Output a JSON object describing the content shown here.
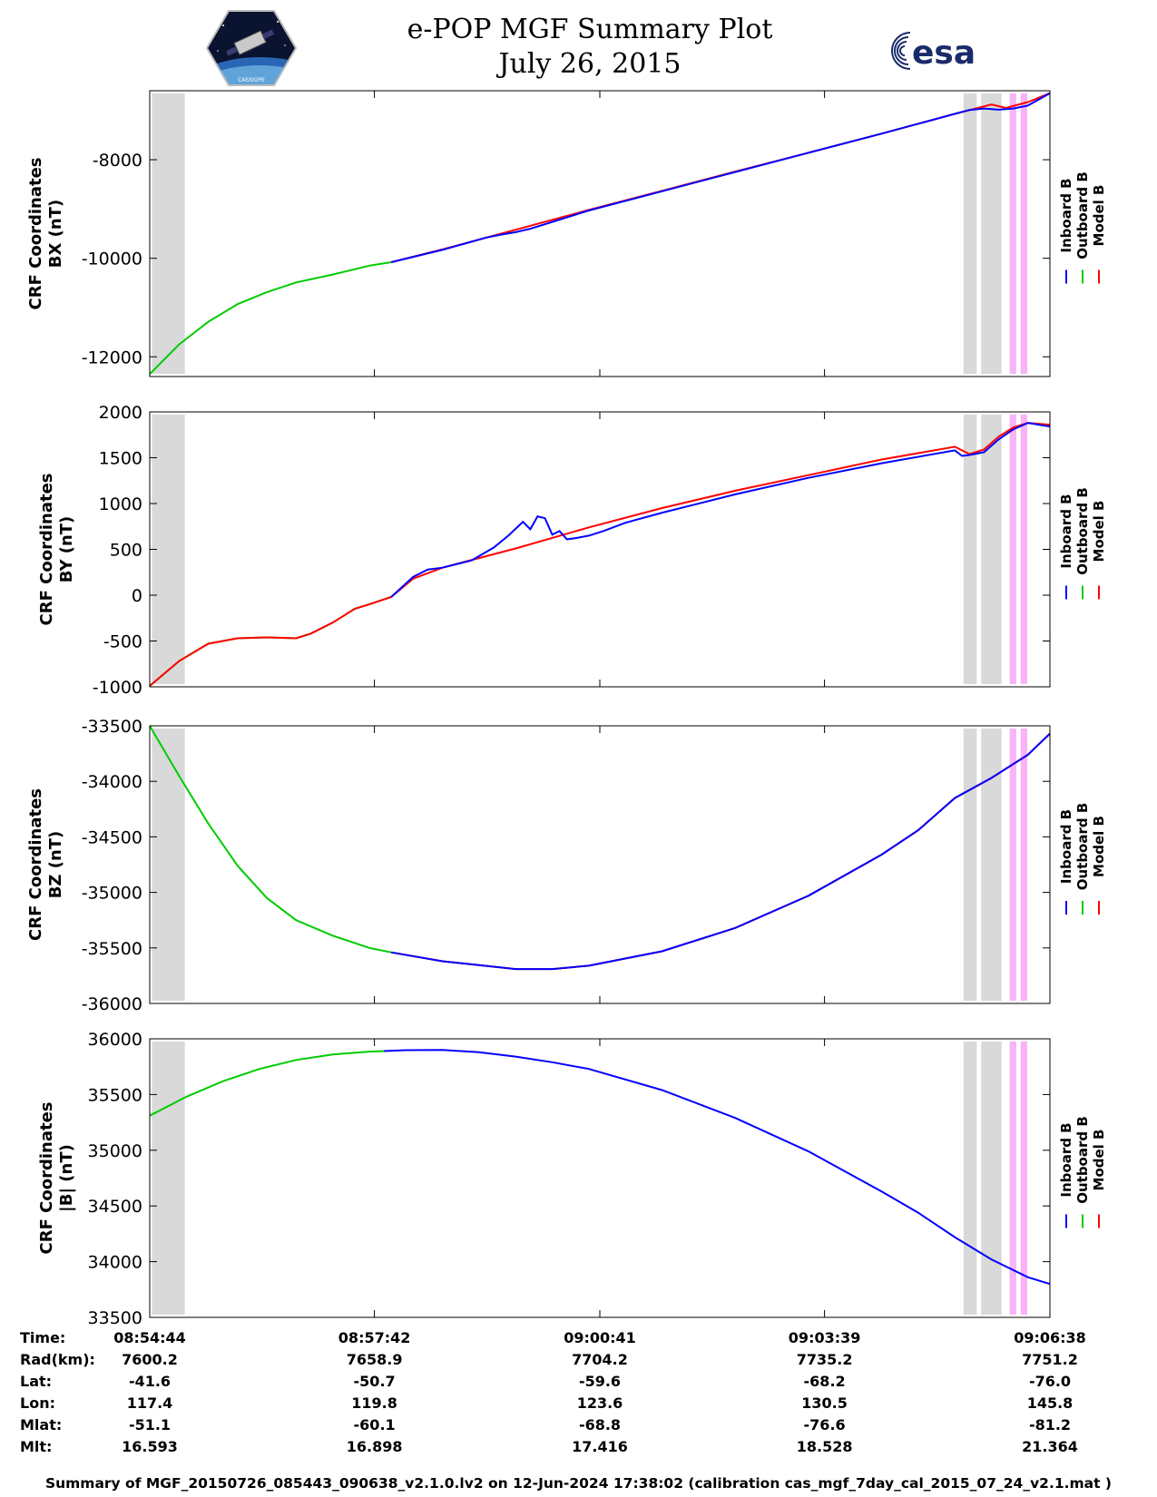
{
  "header": {
    "title_line1": "e-POP MGF Summary Plot",
    "title_line2": "July 26, 2015",
    "left_logo_text": "CASSIOPE",
    "right_logo_text": "esa"
  },
  "legend": {
    "labels": [
      "Inboard B",
      "Outboard B",
      "Model B"
    ],
    "colors": [
      "#0000ff",
      "#00cc00",
      "#ff0000"
    ]
  },
  "chart_data": [
    {
      "type": "line",
      "ylabel_line1": "CRF Coordinates",
      "ylabel_line2": "BX (nT)",
      "ylim": [
        -12400,
        -6600
      ],
      "yticks": [
        -12000,
        -10000,
        -8000
      ],
      "ytick_labels": [
        "-12000",
        "-10000",
        "-8000"
      ],
      "series": [
        {
          "name": "Outboard B",
          "color": "#00cc00",
          "x": [
            0,
            40,
            80,
            120,
            160,
            200,
            250,
            300,
            330
          ],
          "values": [
            -12350,
            -11750,
            -11290,
            -10930,
            -10690,
            -10490,
            -10330,
            -10150,
            -10080
          ]
        },
        {
          "name": "Model B",
          "color": "#ff0000",
          "x": [
            330,
            400,
            500,
            600,
            700,
            800,
            900,
            1000,
            1100,
            1150,
            1170,
            1200,
            1230
          ],
          "values": [
            -10080,
            -9820,
            -9420,
            -9020,
            -8630,
            -8240,
            -7860,
            -7470,
            -7070,
            -6880,
            -6950,
            -6830,
            -6650
          ]
        },
        {
          "name": "Inboard B",
          "color": "#0000ff",
          "x": [
            330,
            400,
            460,
            480,
            500,
            520,
            600,
            700,
            800,
            900,
            1000,
            1100,
            1120,
            1140,
            1160,
            1180,
            1200,
            1230
          ],
          "values": [
            -10080,
            -9830,
            -9580,
            -9520,
            -9470,
            -9400,
            -9030,
            -8640,
            -8250,
            -7860,
            -7470,
            -7070,
            -6990,
            -6960,
            -6985,
            -6960,
            -6900,
            -6650
          ]
        }
      ]
    },
    {
      "type": "line",
      "ylabel_line1": "CRF Coordinates",
      "ylabel_line2": "BY (nT)",
      "ylim": [
        -1000,
        2000
      ],
      "yticks": [
        -1000,
        -500,
        0,
        500,
        1000,
        1500,
        2000
      ],
      "ytick_labels": [
        "-1000",
        "-500",
        "0",
        "500",
        "1000",
        "1500",
        "2000"
      ],
      "series": [
        {
          "name": "Outboard B",
          "color": "#00cc00",
          "x": [
            0,
            40,
            80,
            120,
            160,
            200,
            220,
            250,
            280,
            300,
            330
          ],
          "values": [
            -990,
            -720,
            -530,
            -470,
            -460,
            -470,
            -420,
            -300,
            -150,
            -100,
            -20
          ]
        },
        {
          "name": "Model B",
          "color": "#ff0000",
          "x": [
            0,
            40,
            80,
            120,
            160,
            200,
            220,
            250,
            280,
            300,
            330,
            360,
            400,
            500,
            600,
            700,
            800,
            900,
            1000,
            1100,
            1120,
            1140,
            1160,
            1180,
            1200,
            1230
          ],
          "values": [
            -990,
            -720,
            -530,
            -470,
            -460,
            -470,
            -420,
            -300,
            -150,
            -100,
            -20,
            180,
            300,
            510,
            740,
            950,
            1140,
            1310,
            1480,
            1620,
            1540,
            1590,
            1730,
            1830,
            1880,
            1860
          ]
        },
        {
          "name": "Inboard B",
          "color": "#0000ff",
          "x": [
            330,
            360,
            380,
            400,
            440,
            470,
            490,
            510,
            520,
            530,
            540,
            550,
            560,
            570,
            580,
            600,
            620,
            650,
            700,
            800,
            900,
            1000,
            1100,
            1110,
            1120,
            1140,
            1160,
            1180,
            1200,
            1230
          ],
          "values": [
            -20,
            200,
            280,
            300,
            380,
            520,
            650,
            800,
            720,
            860,
            840,
            660,
            700,
            610,
            620,
            650,
            700,
            790,
            900,
            1100,
            1280,
            1440,
            1580,
            1520,
            1530,
            1560,
            1700,
            1810,
            1880,
            1840
          ]
        }
      ]
    },
    {
      "type": "line",
      "ylabel_line1": "CRF Coordinates",
      "ylabel_line2": "BZ (nT)",
      "ylim": [
        -36000,
        -33500
      ],
      "yticks": [
        -36000,
        -35500,
        -35000,
        -34500,
        -34000,
        -33500
      ],
      "ytick_labels": [
        "-36000",
        "-35500",
        "-35000",
        "-34500",
        "-34000",
        "-33500"
      ],
      "series": [
        {
          "name": "Outboard B",
          "color": "#00cc00",
          "x": [
            0,
            40,
            80,
            120,
            160,
            200,
            250,
            300,
            330
          ],
          "values": [
            -33500,
            -33950,
            -34380,
            -34760,
            -35050,
            -35250,
            -35390,
            -35500,
            -35540
          ]
        },
        {
          "name": "Model B",
          "color": "#ff0000",
          "x": [
            330,
            400,
            500,
            550,
            600,
            700,
            800,
            900,
            1000,
            1050,
            1100,
            1150,
            1200,
            1230
          ],
          "values": [
            -35540,
            -35620,
            -35690,
            -35690,
            -35660,
            -35530,
            -35320,
            -35030,
            -34660,
            -34440,
            -34150,
            -33970,
            -33760,
            -33570
          ]
        },
        {
          "name": "Inboard B",
          "color": "#0000ff",
          "x": [
            330,
            400,
            500,
            550,
            600,
            700,
            800,
            900,
            1000,
            1050,
            1100,
            1150,
            1200,
            1230
          ],
          "values": [
            -35540,
            -35620,
            -35690,
            -35690,
            -35660,
            -35530,
            -35320,
            -35030,
            -34660,
            -34440,
            -34150,
            -33970,
            -33760,
            -33570
          ]
        }
      ]
    },
    {
      "type": "line",
      "ylabel_line1": "CRF Coordinates",
      "ylabel_line2": "|B| (nT)",
      "ylim": [
        33500,
        36000
      ],
      "yticks": [
        33500,
        34000,
        34500,
        35000,
        35500,
        36000
      ],
      "ytick_labels": [
        "33500",
        "34000",
        "34500",
        "35000",
        "35500",
        "36000"
      ],
      "series": [
        {
          "name": "Outboard B",
          "color": "#00cc00",
          "x": [
            0,
            50,
            100,
            150,
            200,
            250,
            300,
            320
          ],
          "values": [
            35310,
            35480,
            35620,
            35730,
            35810,
            35860,
            35885,
            35890
          ]
        },
        {
          "name": "Inboard B",
          "color": "#0000ff",
          "x": [
            320,
            350,
            400,
            450,
            500,
            550,
            600,
            700,
            800,
            900,
            1000,
            1050,
            1100,
            1150,
            1200,
            1230
          ],
          "values": [
            35890,
            35898,
            35900,
            35880,
            35840,
            35790,
            35730,
            35540,
            35290,
            34990,
            34630,
            34440,
            34220,
            34020,
            33860,
            33800
          ]
        }
      ]
    }
  ],
  "xaxis": {
    "xlim": [
      0,
      1230
    ],
    "tick_positions": [
      0,
      307,
      615,
      922,
      1230
    ],
    "shading_gray": [
      [
        3,
        48
      ],
      [
        1112,
        1130
      ],
      [
        1136,
        1164
      ]
    ],
    "shading_pink": [
      [
        1175,
        1184
      ],
      [
        1190,
        1199
      ]
    ]
  },
  "info": {
    "row_labels": [
      "Time:",
      "Rad(km):",
      "Lat:",
      "Lon:",
      "Mlat:",
      "Mlt:"
    ],
    "columns": [
      [
        "08:54:44",
        "7600.2",
        "-41.6",
        "117.4",
        "-51.1",
        "16.593"
      ],
      [
        "08:57:42",
        "7658.9",
        "-50.7",
        "119.8",
        "-60.1",
        "16.898"
      ],
      [
        "09:00:41",
        "7704.2",
        "-59.6",
        "123.6",
        "-68.8",
        "17.416"
      ],
      [
        "09:03:39",
        "7735.2",
        "-68.2",
        "130.5",
        "-76.6",
        "18.528"
      ],
      [
        "09:06:38",
        "7751.2",
        "-76.0",
        "145.8",
        "-81.2",
        "21.364"
      ]
    ]
  },
  "footer": "Summary of MGF_20150726_085443_090638_v2.1.0.lv2 on 12-Jun-2024 17:38:02 (calibration cas_mgf_7day_cal_2015_07_24_v2.1.mat )"
}
